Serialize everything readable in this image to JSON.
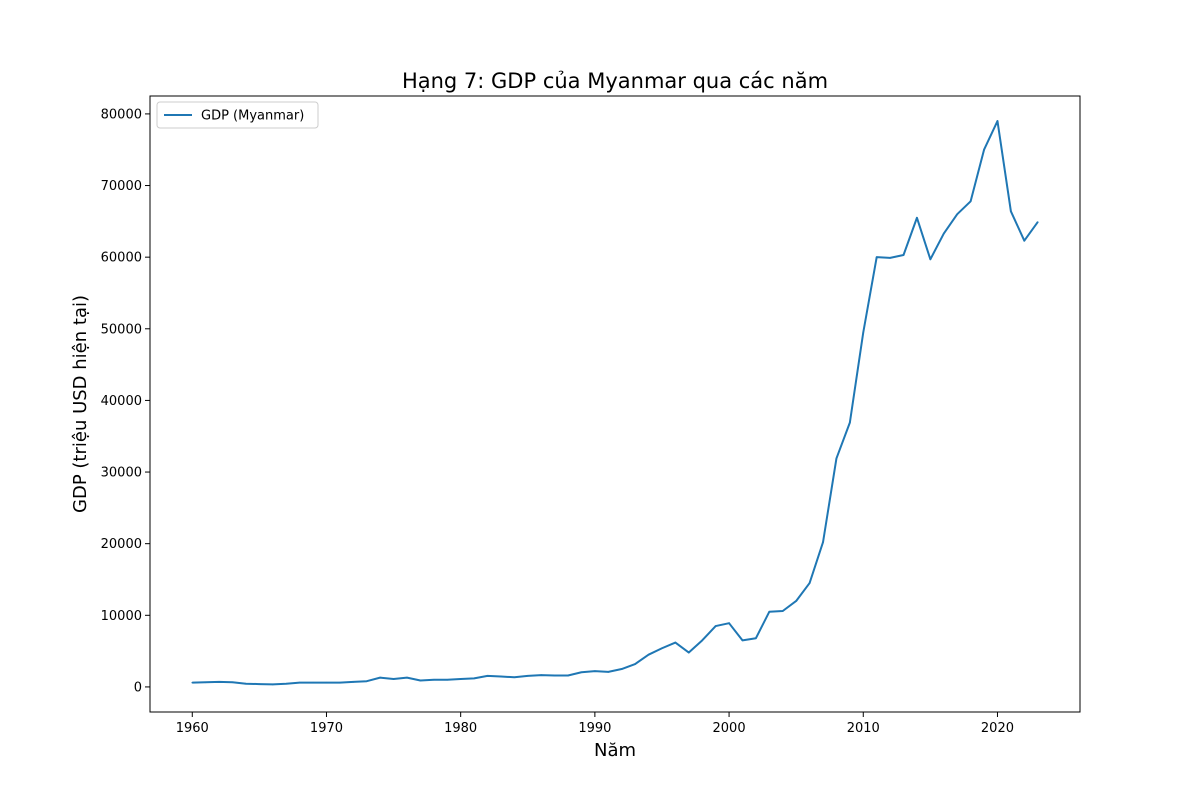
{
  "chart_data": {
    "type": "line",
    "title": "Hạng 7: GDP của Myanmar qua các năm",
    "xlabel": "Năm",
    "ylabel": "GDP (triệu USD hiện tại)",
    "xlim": [
      1956.85,
      2026.15
    ],
    "ylim": [
      -3500,
      82500
    ],
    "xticks": [
      1960,
      1970,
      1980,
      1990,
      2000,
      2010,
      2020
    ],
    "yticks": [
      0,
      10000,
      20000,
      30000,
      40000,
      50000,
      60000,
      70000,
      80000
    ],
    "grid": false,
    "legend_position": "top-left",
    "series": [
      {
        "name": "GDP (Myanmar)",
        "color": "#1f77b4",
        "x": [
          1960,
          1961,
          1962,
          1963,
          1964,
          1965,
          1966,
          1967,
          1968,
          1969,
          1970,
          1971,
          1972,
          1973,
          1974,
          1975,
          1976,
          1977,
          1978,
          1979,
          1980,
          1981,
          1982,
          1983,
          1984,
          1985,
          1986,
          1987,
          1988,
          1989,
          1990,
          1991,
          1992,
          1993,
          1994,
          1995,
          1996,
          1997,
          1998,
          1999,
          2000,
          2001,
          2002,
          2003,
          2004,
          2005,
          2006,
          2007,
          2008,
          2009,
          2010,
          2011,
          2012,
          2013,
          2014,
          2015,
          2016,
          2017,
          2018,
          2019,
          2020,
          2021,
          2022,
          2023
        ],
        "y": [
          600,
          650,
          700,
          650,
          450,
          400,
          350,
          450,
          600,
          600,
          600,
          600,
          700,
          800,
          1300,
          1100,
          1300,
          900,
          1000,
          1000,
          1100,
          1200,
          1550,
          1450,
          1350,
          1550,
          1650,
          1600,
          1600,
          2050,
          2200,
          2100,
          2500,
          3200,
          4500,
          5400,
          6200,
          4800,
          6500,
          8500,
          8900,
          6500,
          6800,
          10500,
          10600,
          12000,
          14500,
          20200,
          31900,
          36900,
          49500,
          60000,
          59900,
          60300,
          65500,
          59700,
          63300,
          66000,
          67800,
          75000,
          79000,
          66400,
          62300,
          64900
        ]
      }
    ]
  }
}
